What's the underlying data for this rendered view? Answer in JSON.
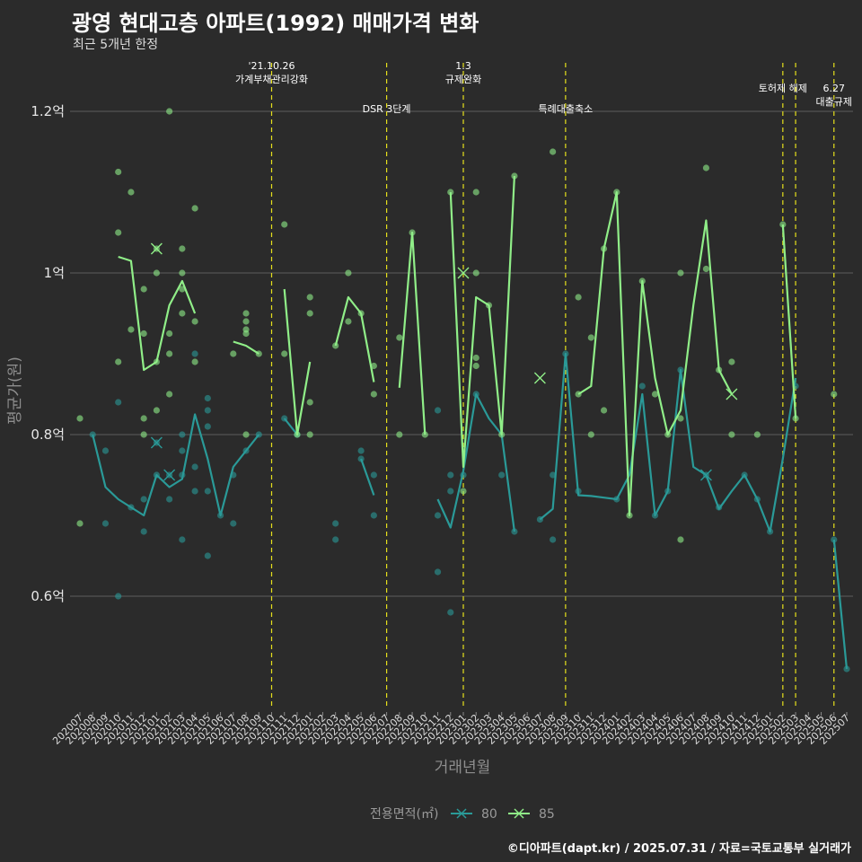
{
  "title": "광영 현대고층 아파트(1992) 매매가격 변화",
  "subtitle": "최근 5개년 한정",
  "caption": "©디아파트(dapt.kr) / 2025.07.31 / 자료=국토교통부 실거래가",
  "colors": {
    "s80": "#2a9a98",
    "s85": "#90ee88",
    "event": "#e6e01c",
    "grid": "#5e5e5e",
    "background": "#2b2b2b"
  },
  "chart_data": {
    "type": "line",
    "xlabel": "거래년월",
    "ylabel": "평균가(원)",
    "ylim": [
      0.46,
      1.26
    ],
    "y_ticks": [
      {
        "value": 0.6,
        "label": "0.6억"
      },
      {
        "value": 0.8,
        "label": "0.8억"
      },
      {
        "value": 1.0,
        "label": "1억"
      },
      {
        "value": 1.2,
        "label": "1.2억"
      }
    ],
    "x_labels": [
      "202007",
      "202008",
      "202009",
      "202010",
      "202011",
      "202012",
      "202101",
      "202102",
      "202103",
      "202104",
      "202105",
      "202106",
      "202107",
      "202108",
      "202109",
      "202110",
      "202111",
      "202112",
      "202201",
      "202202",
      "202203",
      "202204",
      "202205",
      "202206",
      "202207",
      "202208",
      "202209",
      "202210",
      "202211",
      "202212",
      "202301",
      "202302",
      "202303",
      "202304",
      "202305",
      "202306",
      "202307",
      "202308",
      "202309",
      "202310",
      "202311",
      "202312",
      "202401",
      "202402",
      "202403",
      "202404",
      "202405",
      "202406",
      "202407",
      "202408",
      "202409",
      "202410",
      "202411",
      "202412",
      "202501",
      "202502",
      "202503",
      "202504",
      "202505",
      "202506",
      "202507"
    ],
    "legend": {
      "title": "전용면적(㎡)",
      "position": "bottom"
    },
    "events": [
      {
        "date": "202110",
        "label": "'21.10.26\n가계부채관리강화",
        "row": 0
      },
      {
        "date": "202207",
        "label": "DSR 3단계",
        "row": 1
      },
      {
        "date": "202301",
        "label": "1.3\n규제완화",
        "row": 0
      },
      {
        "date": "202309",
        "label": "특례대출축소",
        "row": 1
      },
      {
        "date": "202502",
        "label": "토허제 해제",
        "row": 0
      },
      {
        "date": "202503",
        "label": "",
        "row": 0
      },
      {
        "date": "202506",
        "label": "6.27\n대출규제",
        "row": 2
      }
    ],
    "series": [
      {
        "name": "80",
        "line": [
          [
            0,
            null
          ],
          [
            1,
            0.8
          ],
          [
            2,
            0.735
          ],
          [
            3,
            0.72
          ],
          [
            4,
            0.71
          ],
          [
            5,
            0.7
          ],
          [
            6,
            0.75
          ],
          [
            7,
            0.735
          ],
          [
            8,
            0.745
          ],
          [
            9,
            0.825
          ],
          [
            10,
            0.77
          ],
          [
            11,
            0.7
          ],
          [
            12,
            0.76
          ],
          [
            13,
            0.78
          ],
          [
            14,
            0.8
          ],
          [
            15,
            null
          ],
          [
            16,
            0.82
          ],
          [
            17,
            0.8
          ],
          [
            18,
            null
          ],
          [
            19,
            null
          ],
          [
            20,
            0.68
          ],
          [
            21,
            null
          ],
          [
            22,
            0.77
          ],
          [
            23,
            0.725
          ],
          [
            24,
            null
          ],
          [
            25,
            null
          ],
          [
            26,
            null
          ],
          [
            27,
            null
          ],
          [
            28,
            0.72
          ],
          [
            29,
            0.685
          ],
          [
            30,
            0.755
          ],
          [
            31,
            0.85
          ],
          [
            32,
            0.82
          ],
          [
            33,
            0.8
          ],
          [
            34,
            0.68
          ],
          [
            35,
            null
          ],
          [
            36,
            0.695
          ],
          [
            37,
            0.708
          ],
          [
            38,
            0.9
          ],
          [
            39,
            0.725
          ],
          [
            40,
            0.724
          ],
          [
            41,
            0.722
          ],
          [
            42,
            0.72
          ],
          [
            43,
            0.75
          ],
          [
            44,
            0.85
          ],
          [
            45,
            0.7
          ],
          [
            46,
            0.73
          ],
          [
            47,
            0.88
          ],
          [
            48,
            0.76
          ],
          [
            49,
            0.75
          ],
          [
            50,
            0.708
          ],
          [
            51,
            0.73
          ],
          [
            52,
            0.75
          ],
          [
            53,
            0.72
          ],
          [
            54,
            0.68
          ],
          [
            55,
            0.77
          ],
          [
            56,
            0.87
          ],
          [
            57,
            null
          ],
          [
            58,
            null
          ],
          [
            59,
            0.67
          ],
          [
            60,
            0.51
          ]
        ],
        "points": [
          [
            1,
            0.8
          ],
          [
            2,
            0.78
          ],
          [
            2,
            0.69
          ],
          [
            3,
            0.84
          ],
          [
            3,
            0.6
          ],
          [
            4,
            0.71
          ],
          [
            5,
            0.72
          ],
          [
            5,
            0.68
          ],
          [
            6,
            0.75
          ],
          [
            6,
            0.79
          ],
          [
            7,
            0.75
          ],
          [
            7,
            0.72
          ],
          [
            8,
            0.67
          ],
          [
            8,
            0.75
          ],
          [
            8,
            0.78
          ],
          [
            8,
            0.8
          ],
          [
            9,
            0.73
          ],
          [
            9,
            0.76
          ],
          [
            9,
            0.9
          ],
          [
            10,
            0.73
          ],
          [
            10,
            0.65
          ],
          [
            10,
            0.81
          ],
          [
            10,
            0.83
          ],
          [
            10,
            0.845
          ],
          [
            11,
            0.7
          ],
          [
            12,
            0.75
          ],
          [
            12,
            0.69
          ],
          [
            13,
            0.78
          ],
          [
            14,
            0.8
          ],
          [
            16,
            0.82
          ],
          [
            17,
            0.8
          ],
          [
            20,
            0.67
          ],
          [
            20,
            0.69
          ],
          [
            22,
            0.77
          ],
          [
            22,
            0.78
          ],
          [
            23,
            0.7
          ],
          [
            23,
            0.75
          ],
          [
            28,
            0.7
          ],
          [
            28,
            0.63
          ],
          [
            28,
            0.83
          ],
          [
            29,
            0.58
          ],
          [
            29,
            0.73
          ],
          [
            29,
            0.75
          ],
          [
            30,
            0.75
          ],
          [
            31,
            0.85
          ],
          [
            33,
            0.75
          ],
          [
            34,
            0.68
          ],
          [
            36,
            0.695
          ],
          [
            37,
            0.67
          ],
          [
            37,
            0.75
          ],
          [
            38,
            0.9
          ],
          [
            39,
            0.73
          ],
          [
            42,
            0.72
          ],
          [
            44,
            0.86
          ],
          [
            45,
            0.7
          ],
          [
            46,
            0.73
          ],
          [
            47,
            0.88
          ],
          [
            49,
            0.75
          ],
          [
            50,
            0.71
          ],
          [
            52,
            0.75
          ],
          [
            53,
            0.72
          ],
          [
            54,
            0.68
          ],
          [
            56,
            0.86
          ],
          [
            59,
            0.67
          ],
          [
            60,
            0.51
          ]
        ],
        "crosses": [
          [
            6,
            0.79
          ],
          [
            7,
            0.75
          ],
          [
            49,
            0.75
          ]
        ]
      },
      {
        "name": "85",
        "line": [
          [
            0,
            0.755
          ],
          [
            1,
            null
          ],
          [
            2,
            null
          ],
          [
            3,
            1.02
          ],
          [
            4,
            1.015
          ],
          [
            5,
            0.88
          ],
          [
            6,
            0.89
          ],
          [
            7,
            0.96
          ],
          [
            8,
            0.99
          ],
          [
            9,
            0.95
          ],
          [
            10,
            null
          ],
          [
            11,
            null
          ],
          [
            12,
            0.915
          ],
          [
            13,
            0.91
          ],
          [
            14,
            0.9
          ],
          [
            15,
            null
          ],
          [
            16,
            0.98
          ],
          [
            17,
            0.8
          ],
          [
            18,
            0.89
          ],
          [
            19,
            null
          ],
          [
            20,
            0.91
          ],
          [
            21,
            0.97
          ],
          [
            22,
            0.95
          ],
          [
            23,
            0.865
          ],
          [
            24,
            null
          ],
          [
            25,
            0.858
          ],
          [
            26,
            1.05
          ],
          [
            27,
            0.8
          ],
          [
            28,
            null
          ],
          [
            29,
            1.1
          ],
          [
            30,
            0.76
          ],
          [
            31,
            0.97
          ],
          [
            32,
            0.96
          ],
          [
            33,
            0.8
          ],
          [
            34,
            1.12
          ],
          [
            35,
            null
          ],
          [
            36,
            null
          ],
          [
            37,
            1.15
          ],
          [
            38,
            null
          ],
          [
            39,
            0.85
          ],
          [
            40,
            0.86
          ],
          [
            41,
            1.03
          ],
          [
            42,
            1.1
          ],
          [
            43,
            0.7
          ],
          [
            44,
            0.99
          ],
          [
            45,
            0.87
          ],
          [
            46,
            0.8
          ],
          [
            47,
            0.83
          ],
          [
            48,
            0.96
          ],
          [
            49,
            1.065
          ],
          [
            50,
            0.88
          ],
          [
            51,
            0.85
          ],
          [
            52,
            null
          ],
          [
            53,
            0.8
          ],
          [
            54,
            null
          ],
          [
            55,
            1.06
          ],
          [
            56,
            0.82
          ],
          [
            57,
            null
          ],
          [
            58,
            null
          ],
          [
            59,
            0.85
          ],
          [
            60,
            null
          ]
        ],
        "points": [
          [
            0,
            0.82
          ],
          [
            0,
            0.69
          ],
          [
            3,
            1.125
          ],
          [
            3,
            1.05
          ],
          [
            3,
            0.89
          ],
          [
            4,
            1.1
          ],
          [
            4,
            0.93
          ],
          [
            5,
            0.98
          ],
          [
            5,
            0.925
          ],
          [
            5,
            0.82
          ],
          [
            5,
            0.8
          ],
          [
            6,
            1.03
          ],
          [
            6,
            1.0
          ],
          [
            6,
            0.89
          ],
          [
            6,
            0.83
          ],
          [
            7,
            1.2
          ],
          [
            7,
            0.925
          ],
          [
            7,
            0.9
          ],
          [
            7,
            0.85
          ],
          [
            8,
            1.03
          ],
          [
            8,
            1.0
          ],
          [
            8,
            0.98
          ],
          [
            8,
            0.95
          ],
          [
            9,
            1.08
          ],
          [
            9,
            0.94
          ],
          [
            9,
            0.89
          ],
          [
            12,
            0.9
          ],
          [
            13,
            0.95
          ],
          [
            13,
            0.94
          ],
          [
            13,
            0.93
          ],
          [
            13,
            0.925
          ],
          [
            13,
            0.8
          ],
          [
            14,
            0.9
          ],
          [
            16,
            1.06
          ],
          [
            16,
            0.9
          ],
          [
            17,
            0.8
          ],
          [
            18,
            0.97
          ],
          [
            18,
            0.95
          ],
          [
            18,
            0.84
          ],
          [
            18,
            0.8
          ],
          [
            20,
            0.91
          ],
          [
            21,
            1.0
          ],
          [
            21,
            0.94
          ],
          [
            22,
            0.95
          ],
          [
            23,
            0.885
          ],
          [
            23,
            0.85
          ],
          [
            25,
            0.92
          ],
          [
            25,
            0.8
          ],
          [
            26,
            1.05
          ],
          [
            27,
            0.8
          ],
          [
            29,
            1.1
          ],
          [
            30,
            0.73
          ],
          [
            31,
            1.1
          ],
          [
            31,
            1.0
          ],
          [
            31,
            0.895
          ],
          [
            31,
            0.885
          ],
          [
            32,
            0.96
          ],
          [
            33,
            0.8
          ],
          [
            34,
            1.12
          ],
          [
            37,
            1.15
          ],
          [
            39,
            0.97
          ],
          [
            39,
            0.85
          ],
          [
            40,
            0.92
          ],
          [
            40,
            0.8
          ],
          [
            41,
            1.03
          ],
          [
            41,
            0.83
          ],
          [
            42,
            1.1
          ],
          [
            43,
            0.7
          ],
          [
            44,
            0.99
          ],
          [
            45,
            0.85
          ],
          [
            46,
            0.8
          ],
          [
            47,
            1.0
          ],
          [
            47,
            0.82
          ],
          [
            47,
            0.67
          ],
          [
            49,
            1.13
          ],
          [
            49,
            1.005
          ],
          [
            50,
            0.88
          ],
          [
            51,
            0.89
          ],
          [
            51,
            0.8
          ],
          [
            53,
            0.8
          ],
          [
            55,
            1.06
          ],
          [
            56,
            0.82
          ],
          [
            59,
            0.85
          ]
        ],
        "crosses": [
          [
            6,
            1.03
          ],
          [
            30,
            1.0
          ],
          [
            36,
            0.87
          ],
          [
            51,
            0.85
          ]
        ]
      }
    ]
  }
}
